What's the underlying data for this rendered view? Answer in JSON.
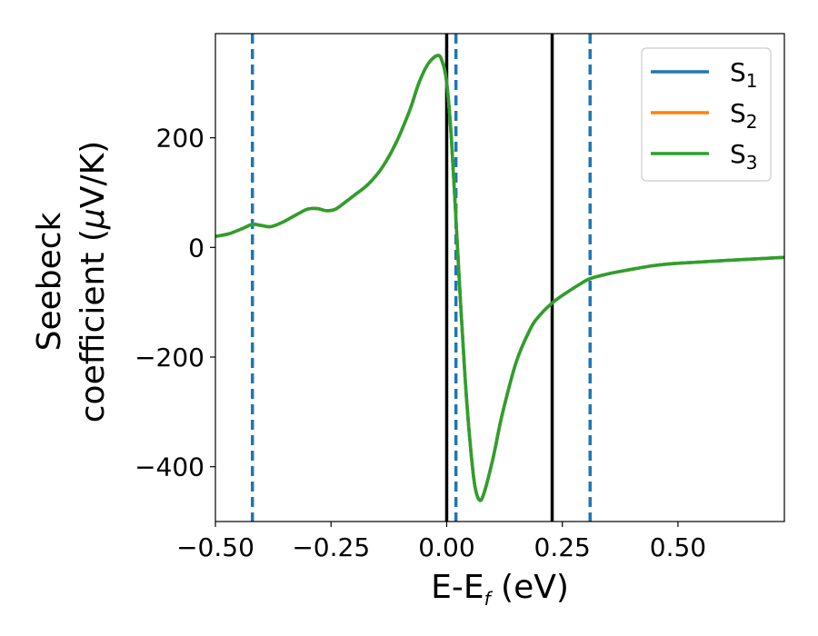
{
  "chart_data": {
    "type": "line",
    "xlabel": {
      "main": "E-E",
      "sub": "f",
      "tail": " (eV)"
    },
    "ylabel": {
      "line1": "Seebeck",
      "line2": "coefficient  (",
      "mu": "μ",
      "line2_tail": "V/K)"
    },
    "xlim": [
      -0.5,
      0.73
    ],
    "ylim": [
      -500,
      390
    ],
    "xticks": [
      -0.5,
      -0.25,
      0.0,
      0.25,
      0.5
    ],
    "xtick_labels": [
      "−0.50",
      "−0.25",
      "0.00",
      "0.25",
      "0.50"
    ],
    "yticks": [
      -400,
      -200,
      0,
      200
    ],
    "ytick_labels": [
      "−400",
      "−200",
      "0",
      "200"
    ],
    "grid": false,
    "legend_position": "top-right",
    "series": [
      {
        "name": "S",
        "sub": "1",
        "color": "#1f77b4",
        "x": [
          -0.5,
          -0.47,
          -0.44,
          -0.42,
          -0.4,
          -0.38,
          -0.35,
          -0.32,
          -0.3,
          -0.28,
          -0.26,
          -0.24,
          -0.22,
          -0.2,
          -0.17,
          -0.14,
          -0.11,
          -0.08,
          -0.06,
          -0.04,
          -0.02,
          -0.01,
          0.0,
          0.01,
          0.02,
          0.03,
          0.04,
          0.05,
          0.06,
          0.07,
          0.08,
          0.1,
          0.12,
          0.15,
          0.18,
          0.2,
          0.23,
          0.26,
          0.29,
          0.31,
          0.35,
          0.4,
          0.45,
          0.5,
          0.6,
          0.73
        ],
        "y": [
          20,
          25,
          35,
          42,
          40,
          38,
          48,
          62,
          70,
          71,
          67,
          70,
          82,
          95,
          115,
          145,
          190,
          250,
          300,
          335,
          350,
          340,
          300,
          200,
          50,
          -100,
          -240,
          -350,
          -430,
          -460,
          -450,
          -385,
          -305,
          -210,
          -150,
          -125,
          -100,
          -82,
          -66,
          -57,
          -48,
          -40,
          -33,
          -29,
          -24,
          -18
        ]
      },
      {
        "name": "S",
        "sub": "2",
        "color": "#ff7f0e",
        "x": [
          -0.5,
          -0.47,
          -0.44,
          -0.42,
          -0.4,
          -0.38,
          -0.35,
          -0.32,
          -0.3,
          -0.28,
          -0.26,
          -0.24,
          -0.22,
          -0.2,
          -0.17,
          -0.14,
          -0.11,
          -0.08,
          -0.06,
          -0.04,
          -0.02,
          -0.01,
          0.0,
          0.01,
          0.02,
          0.03,
          0.04,
          0.05,
          0.06,
          0.07,
          0.08,
          0.1,
          0.12,
          0.15,
          0.18,
          0.2,
          0.23,
          0.26,
          0.29,
          0.31,
          0.35,
          0.4,
          0.45,
          0.5,
          0.6,
          0.73
        ],
        "y": [
          20,
          25,
          35,
          42,
          40,
          38,
          48,
          62,
          70,
          71,
          67,
          70,
          82,
          95,
          115,
          145,
          190,
          250,
          300,
          335,
          350,
          340,
          300,
          200,
          50,
          -100,
          -240,
          -350,
          -430,
          -460,
          -450,
          -385,
          -305,
          -210,
          -150,
          -125,
          -100,
          -82,
          -66,
          -57,
          -48,
          -40,
          -33,
          -29,
          -24,
          -18
        ]
      },
      {
        "name": "S",
        "sub": "3",
        "color": "#2ca02c",
        "x": [
          -0.5,
          -0.47,
          -0.44,
          -0.42,
          -0.4,
          -0.38,
          -0.35,
          -0.32,
          -0.3,
          -0.28,
          -0.26,
          -0.24,
          -0.22,
          -0.2,
          -0.17,
          -0.14,
          -0.11,
          -0.08,
          -0.06,
          -0.04,
          -0.02,
          -0.01,
          0.0,
          0.01,
          0.02,
          0.03,
          0.04,
          0.05,
          0.06,
          0.07,
          0.08,
          0.1,
          0.12,
          0.15,
          0.18,
          0.2,
          0.23,
          0.26,
          0.29,
          0.31,
          0.35,
          0.4,
          0.45,
          0.5,
          0.6,
          0.73
        ],
        "y": [
          20,
          25,
          35,
          42,
          40,
          38,
          48,
          62,
          70,
          71,
          67,
          70,
          82,
          95,
          115,
          145,
          190,
          250,
          300,
          335,
          350,
          340,
          300,
          200,
          50,
          -100,
          -240,
          -350,
          -430,
          -460,
          -450,
          -385,
          -305,
          -210,
          -150,
          -125,
          -100,
          -82,
          -66,
          -57,
          -48,
          -40,
          -33,
          -29,
          -24,
          -18
        ]
      }
    ],
    "vlines_solid": {
      "color": "#000000",
      "x": [
        0.0,
        0.228
      ]
    },
    "vlines_dashed": {
      "color": "#1f77b4",
      "x": [
        -0.42,
        0.02,
        0.31
      ]
    }
  }
}
